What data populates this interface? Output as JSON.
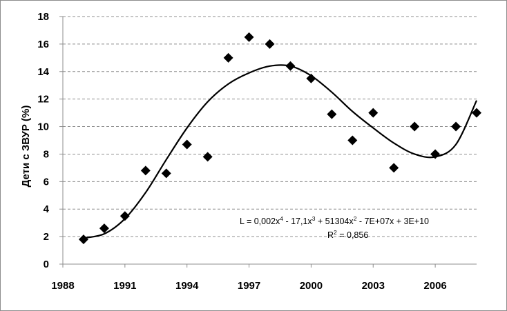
{
  "chart_data": {
    "type": "scatter",
    "ylabel": "Дети с ЗВУР (%)",
    "xlabel": "",
    "xlim": [
      1988,
      2008
    ],
    "ylim": [
      0,
      18
    ],
    "x_ticks": [
      "1988",
      "1991",
      "1994",
      "1997",
      "2000",
      "2003",
      "2006"
    ],
    "y_ticks": [
      "0",
      "2",
      "4",
      "6",
      "8",
      "10",
      "12",
      "14",
      "16",
      "18"
    ],
    "grid": "horizontal-dashed",
    "points": [
      {
        "x": 1989,
        "y": 1.8
      },
      {
        "x": 1990,
        "y": 2.6
      },
      {
        "x": 1991,
        "y": 3.5
      },
      {
        "x": 1992,
        "y": 6.8
      },
      {
        "x": 1993,
        "y": 6.6
      },
      {
        "x": 1994,
        "y": 8.7
      },
      {
        "x": 1995,
        "y": 7.8
      },
      {
        "x": 1996,
        "y": 15.0
      },
      {
        "x": 1997,
        "y": 16.5
      },
      {
        "x": 1998,
        "y": 16.0
      },
      {
        "x": 1999,
        "y": 14.4
      },
      {
        "x": 2000,
        "y": 13.5
      },
      {
        "x": 2001,
        "y": 10.9
      },
      {
        "x": 2002,
        "y": 9.0
      },
      {
        "x": 2003,
        "y": 11.0
      },
      {
        "x": 2004,
        "y": 7.0
      },
      {
        "x": 2005,
        "y": 10.0
      },
      {
        "x": 2006,
        "y": 8.0
      },
      {
        "x": 2007,
        "y": 10.0
      },
      {
        "x": 2008,
        "y": 11.0
      }
    ],
    "trendline": {
      "type": "polynomial-4",
      "curve": [
        {
          "x": 1989,
          "y": 1.9
        },
        {
          "x": 1990,
          "y": 2.2
        },
        {
          "x": 1991,
          "y": 3.3
        },
        {
          "x": 1992,
          "y": 5.2
        },
        {
          "x": 1993,
          "y": 7.6
        },
        {
          "x": 1994,
          "y": 9.9
        },
        {
          "x": 1995,
          "y": 11.8
        },
        {
          "x": 1996,
          "y": 13.1
        },
        {
          "x": 1997,
          "y": 13.9
        },
        {
          "x": 1998,
          "y": 14.4
        },
        {
          "x": 1999,
          "y": 14.4
        },
        {
          "x": 2000,
          "y": 13.7
        },
        {
          "x": 2001,
          "y": 12.5
        },
        {
          "x": 2002,
          "y": 11.1
        },
        {
          "x": 2003,
          "y": 9.9
        },
        {
          "x": 2004,
          "y": 8.8
        },
        {
          "x": 2005,
          "y": 8.0
        },
        {
          "x": 2006,
          "y": 7.8
        },
        {
          "x": 2007,
          "y": 8.7
        },
        {
          "x": 2008,
          "y": 11.9
        }
      ],
      "equation_prefix": "L = 0,002x",
      "equation_parts": [
        {
          "text": "4",
          "sup": true
        },
        {
          "text": " - 17,1x",
          "sup": false
        },
        {
          "text": "3",
          "sup": true
        },
        {
          "text": " + 51304x",
          "sup": false
        },
        {
          "text": "2",
          "sup": true
        },
        {
          "text": " - 7E+07x + 3E+10",
          "sup": false
        }
      ],
      "r2_prefix": "R",
      "r2_sup": "2",
      "r2_value": " = 0,856"
    },
    "colors": {
      "marker": "#000000",
      "line": "#000000",
      "grid": "#8c8c8c",
      "axis": "#8c8c8c"
    }
  }
}
